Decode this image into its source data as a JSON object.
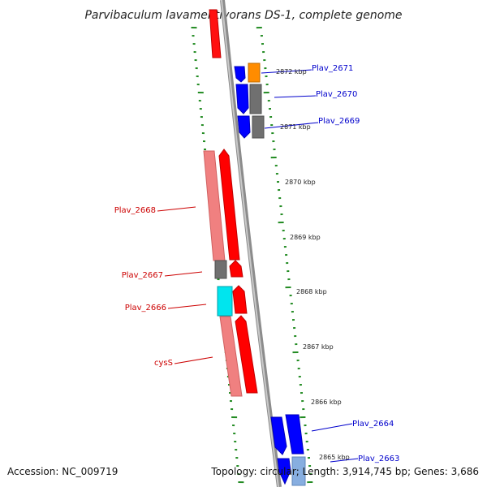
{
  "title": "Parvibaculum lavamentivorans DS-1, complete genome",
  "footer": {
    "accession": "Accession: NC_009719",
    "stats": "Topology: circular; Length: 3,914,745 bp; Genes: 3,686"
  },
  "genes": [
    {
      "label": "Plav_2671",
      "strand": "minus"
    },
    {
      "label": "Plav_2670",
      "strand": "minus"
    },
    {
      "label": "Plav_2669",
      "strand": "minus"
    },
    {
      "label": "Plav_2668",
      "strand": "plus"
    },
    {
      "label": "Plav_2667",
      "strand": "plus"
    },
    {
      "label": "Plav_2666",
      "strand": "plus"
    },
    {
      "label": "cysS",
      "strand": "plus"
    },
    {
      "label": "Plav_2664",
      "strand": "minus"
    },
    {
      "label": "Plav_2663",
      "strand": "minus"
    }
  ],
  "position_labels": [
    "2872 kbp",
    "2871 kbp",
    "2870 kbp",
    "2869 kbp",
    "2868 kbp",
    "2867 kbp",
    "2866 kbp",
    "2865 kbp"
  ],
  "colors": {
    "minus_gene_label": "#0000cc",
    "plus_gene_label": "#cc0000",
    "plus_gene": "#ff0000",
    "plus_gene_light": "#f08080",
    "minus_gene": "#0000ff",
    "unassigned": "#707070",
    "highlight_cyan": "#00e5ee",
    "highlight_orange": "#ff8c00",
    "backbone": "#8c8c8c",
    "tick": "#228b22",
    "light_blue": "#87aee0"
  }
}
